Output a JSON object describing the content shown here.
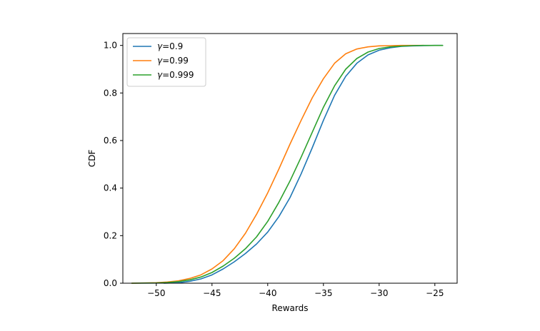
{
  "chart_data": {
    "type": "line",
    "title": "",
    "xlabel": "Rewards",
    "ylabel": "CDF",
    "xlim": [
      -53,
      -23
    ],
    "ylim": [
      0,
      1.05
    ],
    "grid": false,
    "legend_position": "upper left",
    "xticks": [
      -50,
      -45,
      -40,
      -35,
      -30,
      -25
    ],
    "xtick_labels": [
      "−50",
      "−45",
      "−40",
      "−35",
      "−30",
      "−25"
    ],
    "yticks": [
      0.0,
      0.2,
      0.4,
      0.6,
      0.8,
      1.0
    ],
    "ytick_labels": [
      "0.0",
      "0.2",
      "0.4",
      "0.6",
      "0.8",
      "1.0"
    ],
    "series": [
      {
        "name": "γ=0.9",
        "legend_prefix": "γ",
        "legend_suffix": "=0.9",
        "color": "#1f77b4",
        "x": [
          -49.3,
          -48,
          -47,
          -46,
          -45,
          -44,
          -43,
          -42,
          -41,
          -40,
          -39,
          -38,
          -37,
          -36,
          -35,
          -34,
          -33,
          -32,
          -31,
          -30,
          -29,
          -28,
          -27,
          -26,
          -25,
          -24.3
        ],
        "y": [
          0.0,
          0.002,
          0.008,
          0.018,
          0.035,
          0.06,
          0.09,
          0.125,
          0.165,
          0.215,
          0.28,
          0.36,
          0.46,
          0.57,
          0.685,
          0.79,
          0.87,
          0.925,
          0.96,
          0.98,
          0.99,
          0.996,
          0.998,
          0.999,
          1.0,
          1.0
        ]
      },
      {
        "name": "γ=0.99",
        "legend_prefix": "γ",
        "legend_suffix": "=0.99",
        "color": "#ff7f0e",
        "x": [
          -52.2,
          -50,
          -49,
          -48,
          -47,
          -46,
          -45,
          -44,
          -43,
          -42,
          -41,
          -40,
          -39,
          -38,
          -37,
          -36,
          -35,
          -34,
          -33,
          -32,
          -31,
          -30,
          -29,
          -28,
          -27,
          -26
        ],
        "y": [
          0.0,
          0.002,
          0.005,
          0.01,
          0.02,
          0.035,
          0.06,
          0.095,
          0.145,
          0.21,
          0.29,
          0.38,
          0.48,
          0.585,
          0.685,
          0.78,
          0.86,
          0.925,
          0.965,
          0.985,
          0.994,
          0.998,
          0.999,
          1.0,
          1.0,
          1.0
        ]
      },
      {
        "name": "γ=0.999",
        "legend_prefix": "γ",
        "legend_suffix": "=0.999",
        "color": "#2ca02c",
        "x": [
          -52.2,
          -50,
          -49,
          -48,
          -47,
          -46,
          -45,
          -44,
          -43,
          -42,
          -41,
          -40,
          -39,
          -38,
          -37,
          -36,
          -35,
          -34,
          -33,
          -32,
          -31,
          -30,
          -29,
          -28,
          -27,
          -26,
          -25,
          -24.3
        ],
        "y": [
          0.0,
          0.001,
          0.003,
          0.007,
          0.014,
          0.026,
          0.045,
          0.072,
          0.105,
          0.145,
          0.195,
          0.26,
          0.34,
          0.43,
          0.53,
          0.635,
          0.74,
          0.83,
          0.9,
          0.945,
          0.972,
          0.987,
          0.994,
          0.997,
          0.999,
          1.0,
          1.0,
          1.0
        ]
      }
    ]
  }
}
